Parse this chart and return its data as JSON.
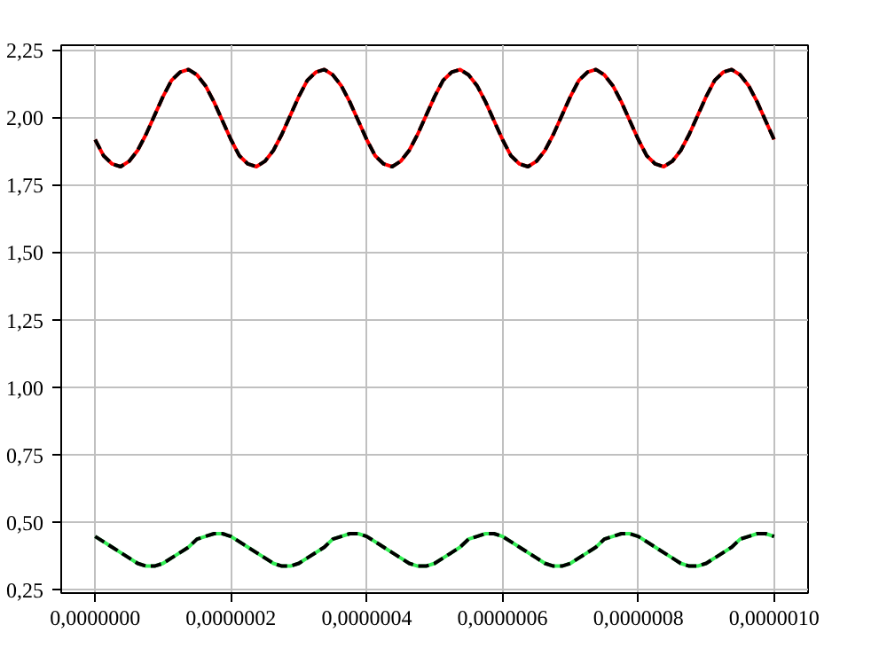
{
  "chart_data": {
    "type": "line",
    "grid": true,
    "x": [
      0,
      1.25e-08,
      2.5e-08,
      3.75e-08,
      5e-08,
      6.25e-08,
      7.5e-08,
      8.75e-08,
      1e-07,
      1.125e-07,
      1.25e-07,
      1.375e-07,
      1.5e-07,
      1.625e-07,
      1.75e-07,
      1.875e-07,
      2e-07,
      2.125e-07,
      2.25e-07,
      2.375e-07,
      2.5e-07,
      2.625e-07,
      2.75e-07,
      2.875e-07,
      3e-07,
      3.125e-07,
      3.25e-07,
      3.375e-07,
      3.5e-07,
      3.625e-07,
      3.75e-07,
      3.875e-07,
      4e-07,
      4.125e-07,
      4.25e-07,
      4.375e-07,
      4.5e-07,
      4.625e-07,
      4.75e-07,
      4.875e-07,
      5e-07,
      5.125e-07,
      5.25e-07,
      5.375e-07,
      5.5e-07,
      5.625e-07,
      5.75e-07,
      5.875e-07,
      6e-07,
      6.125e-07,
      6.25e-07,
      6.375e-07,
      6.5e-07,
      6.625e-07,
      6.75e-07,
      6.875e-07,
      7e-07,
      7.125e-07,
      7.25e-07,
      7.375e-07,
      7.5e-07,
      7.625e-07,
      7.75e-07,
      7.875e-07,
      8e-07,
      8.125e-07,
      8.25e-07,
      8.375e-07,
      8.5e-07,
      8.625e-07,
      8.75e-07,
      8.875e-07,
      9e-07,
      9.125e-07,
      9.25e-07,
      9.375e-07,
      9.5e-07,
      9.625e-07,
      9.75e-07,
      9.875e-07,
      1e-06
    ],
    "series": [
      {
        "color": "#ff0000",
        "line_style": "solid",
        "values": [
          1.92,
          1.86,
          1.83,
          1.82,
          1.84,
          1.88,
          1.94,
          2.01,
          2.08,
          2.14,
          2.17,
          2.18,
          2.16,
          2.12,
          2.06,
          1.99,
          1.92,
          1.86,
          1.83,
          1.82,
          1.84,
          1.88,
          1.94,
          2.01,
          2.08,
          2.14,
          2.17,
          2.18,
          2.16,
          2.12,
          2.06,
          1.99,
          1.92,
          1.86,
          1.83,
          1.82,
          1.84,
          1.88,
          1.94,
          2.01,
          2.08,
          2.14,
          2.17,
          2.18,
          2.16,
          2.12,
          2.06,
          1.99,
          1.92,
          1.86,
          1.83,
          1.82,
          1.84,
          1.88,
          1.94,
          2.01,
          2.08,
          2.14,
          2.17,
          2.18,
          2.16,
          2.12,
          2.06,
          1.99,
          1.92,
          1.86,
          1.83,
          1.82,
          1.84,
          1.88,
          1.94,
          2.01,
          2.08,
          2.14,
          2.17,
          2.18,
          2.16,
          2.12,
          2.06,
          1.99,
          1.92
        ]
      },
      {
        "color": "#000000",
        "line_style": "dashed",
        "values": [
          1.92,
          1.86,
          1.83,
          1.82,
          1.84,
          1.88,
          1.94,
          2.01,
          2.08,
          2.14,
          2.17,
          2.18,
          2.16,
          2.12,
          2.06,
          1.99,
          1.92,
          1.86,
          1.83,
          1.82,
          1.84,
          1.88,
          1.94,
          2.01,
          2.08,
          2.14,
          2.17,
          2.18,
          2.16,
          2.12,
          2.06,
          1.99,
          1.92,
          1.86,
          1.83,
          1.82,
          1.84,
          1.88,
          1.94,
          2.01,
          2.08,
          2.14,
          2.17,
          2.18,
          2.16,
          2.12,
          2.06,
          1.99,
          1.92,
          1.86,
          1.83,
          1.82,
          1.84,
          1.88,
          1.94,
          2.01,
          2.08,
          2.14,
          2.17,
          2.18,
          2.16,
          2.12,
          2.06,
          1.99,
          1.92,
          1.86,
          1.83,
          1.82,
          1.84,
          1.88,
          1.94,
          2.01,
          2.08,
          2.14,
          2.17,
          2.18,
          2.16,
          2.12,
          2.06,
          1.99,
          1.92
        ]
      },
      {
        "color": "#33ee55",
        "line_style": "solid",
        "values": [
          0.45,
          0.43,
          0.41,
          0.39,
          0.37,
          0.35,
          0.34,
          0.34,
          0.35,
          0.37,
          0.39,
          0.41,
          0.44,
          0.45,
          0.46,
          0.46,
          0.45,
          0.43,
          0.41,
          0.39,
          0.37,
          0.35,
          0.34,
          0.34,
          0.35,
          0.37,
          0.39,
          0.41,
          0.44,
          0.45,
          0.46,
          0.46,
          0.45,
          0.43,
          0.41,
          0.39,
          0.37,
          0.35,
          0.34,
          0.34,
          0.35,
          0.37,
          0.39,
          0.41,
          0.44,
          0.45,
          0.46,
          0.46,
          0.45,
          0.43,
          0.41,
          0.39,
          0.37,
          0.35,
          0.34,
          0.34,
          0.35,
          0.37,
          0.39,
          0.41,
          0.44,
          0.45,
          0.46,
          0.46,
          0.45,
          0.43,
          0.41,
          0.39,
          0.37,
          0.35,
          0.34,
          0.34,
          0.35,
          0.37,
          0.39,
          0.41,
          0.44,
          0.45,
          0.46,
          0.46,
          0.45
        ]
      },
      {
        "color": "#000000",
        "line_style": "dashed",
        "values": [
          0.45,
          0.43,
          0.41,
          0.39,
          0.37,
          0.35,
          0.34,
          0.34,
          0.35,
          0.37,
          0.39,
          0.41,
          0.44,
          0.45,
          0.46,
          0.46,
          0.45,
          0.43,
          0.41,
          0.39,
          0.37,
          0.35,
          0.34,
          0.34,
          0.35,
          0.37,
          0.39,
          0.41,
          0.44,
          0.45,
          0.46,
          0.46,
          0.45,
          0.43,
          0.41,
          0.39,
          0.37,
          0.35,
          0.34,
          0.34,
          0.35,
          0.37,
          0.39,
          0.41,
          0.44,
          0.45,
          0.46,
          0.46,
          0.45,
          0.43,
          0.41,
          0.39,
          0.37,
          0.35,
          0.34,
          0.34,
          0.35,
          0.37,
          0.39,
          0.41,
          0.44,
          0.45,
          0.46,
          0.46,
          0.45,
          0.43,
          0.41,
          0.39,
          0.37,
          0.35,
          0.34,
          0.34,
          0.35,
          0.37,
          0.39,
          0.41,
          0.44,
          0.45,
          0.46,
          0.46,
          0.45
        ]
      }
    ],
    "xlim": [
      -5e-08,
      1.05e-06
    ],
    "xticks": [
      {
        "value": 0,
        "label": "0,0000000"
      },
      {
        "value": 2e-07,
        "label": "0,0000002"
      },
      {
        "value": 4e-07,
        "label": "0,0000004"
      },
      {
        "value": 6e-07,
        "label": "0,0000006"
      },
      {
        "value": 8e-07,
        "label": "0,0000008"
      },
      {
        "value": 1e-06,
        "label": "0,0000010"
      }
    ],
    "ylim": [
      0.24,
      2.27
    ],
    "yticks": [
      {
        "value": 0.25,
        "label": "0,25"
      },
      {
        "value": 0.5,
        "label": "0,50"
      },
      {
        "value": 0.75,
        "label": "0,75"
      },
      {
        "value": 1.0,
        "label": "1,00"
      },
      {
        "value": 1.25,
        "label": "1,25"
      },
      {
        "value": 1.5,
        "label": "1,50"
      },
      {
        "value": 1.75,
        "label": "1,75"
      },
      {
        "value": 2.0,
        "label": "2,00"
      },
      {
        "value": 2.25,
        "label": "2,25"
      }
    ]
  }
}
